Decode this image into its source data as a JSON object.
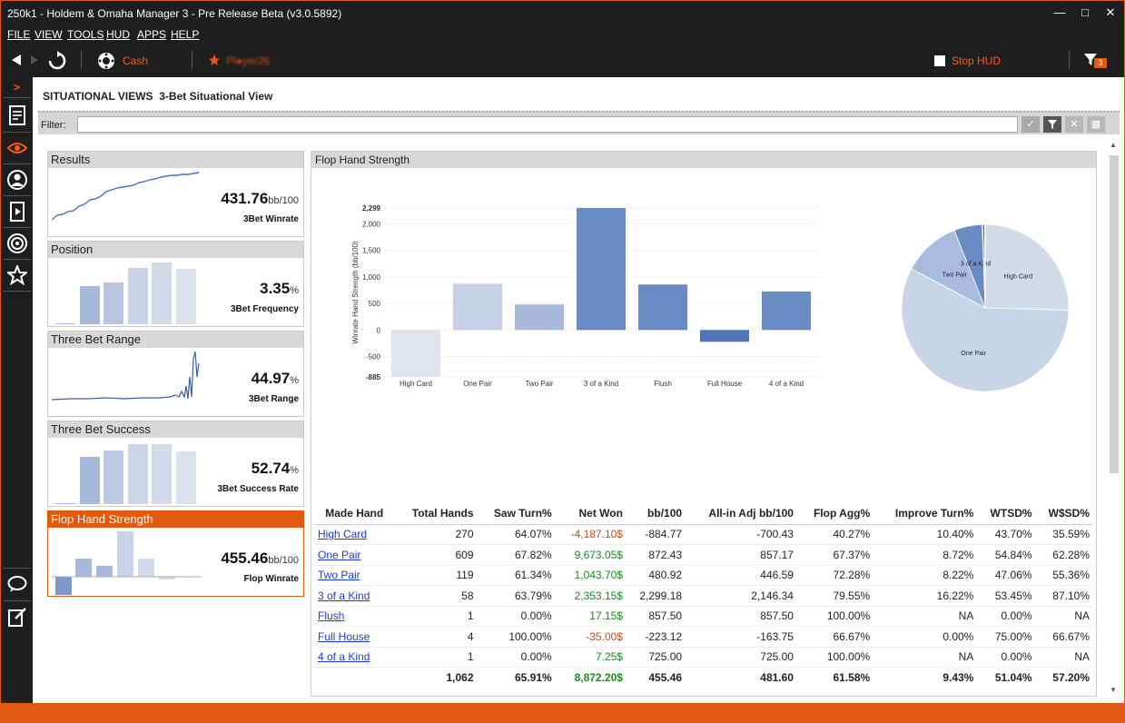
{
  "window": {
    "title": "250k1 - Holdem & Omaha Manager 3 - Pre Release Beta (v3.0.5892)"
  },
  "menu": [
    "FILE",
    "VIEW",
    "TOOLS",
    "HUD",
    "APPS",
    "HELP"
  ],
  "toolbar": {
    "game_label": "Cash",
    "player_label": "Pl●yer26",
    "stop_hud_label": "Stop HUD",
    "filter_badge": "3"
  },
  "page": {
    "section": "SITUATIONAL VIEWS",
    "title": "3-Bet Situational View",
    "filter_label": "Filter:",
    "filter_value": ""
  },
  "cards": [
    {
      "title": "Results",
      "value": "431.76",
      "unit": "bb/100",
      "subtitle": "3Bet Winrate",
      "active": false
    },
    {
      "title": "Position",
      "value": "3.35",
      "unit": "%",
      "subtitle": "3Bet Frequency",
      "active": false
    },
    {
      "title": "Three Bet Range",
      "value": "44.97",
      "unit": "%",
      "subtitle": "3Bet Range",
      "active": false
    },
    {
      "title": "Three Bet Success",
      "value": "52.74",
      "unit": "%",
      "subtitle": "3Bet Success Rate",
      "active": false
    },
    {
      "title": "Flop Hand Strength",
      "value": "455.46",
      "unit": "bb/100",
      "subtitle": "Flop Winrate",
      "active": true
    }
  ],
  "panel": {
    "title": "Flop Hand Strength"
  },
  "chart_data": [
    {
      "type": "bar",
      "ylabel": "Winrate Hand Strength (bb/100)",
      "ylim": [
        -885,
        2299
      ],
      "yticks": [
        "2,299",
        "2,000",
        "1,500",
        "1,000",
        "500",
        "0",
        "-500",
        "-885"
      ],
      "categories": [
        "High Card",
        "One Pair",
        "Two Pair",
        "3 of a Kind",
        "Flush",
        "Full House",
        "4 of a Kind"
      ],
      "values": [
        -884.77,
        872.43,
        480.92,
        2299.18,
        857.5,
        -223.12,
        725.0
      ],
      "colors": [
        "#dfe3ec",
        "#c5d0e6",
        "#a8b9dc",
        "#6a8cc4",
        "#6a8cc4",
        "#4f73b5",
        "#6a8cc4"
      ]
    },
    {
      "type": "pie",
      "labels": [
        "High Card",
        "One Pair",
        "Two Pair",
        "3 of a Kind",
        "Flush",
        "Full House",
        "4 of a Kind"
      ],
      "values": [
        270,
        609,
        119,
        58,
        1,
        4,
        1
      ],
      "colors": [
        "#d3dbe9",
        "#c8d5e7",
        "#a9bbde",
        "#6a8cc4",
        "#4f73b5",
        "#3f62a8",
        "#5d7fbf"
      ]
    }
  ],
  "table": {
    "headers": [
      "Made Hand",
      "Total Hands",
      "Saw Turn%",
      "Net Won",
      "bb/100",
      "All-in Adj bb/100",
      "Flop Agg%",
      "Improve Turn%",
      "WTSD%",
      "W$SD%"
    ],
    "rows": [
      [
        "High Card",
        "270",
        "64.07%",
        "-4,187.10$",
        "-884.77",
        "-700.43",
        "40.27%",
        "10.40%",
        "43.70%",
        "35.59%"
      ],
      [
        "One Pair",
        "609",
        "67.82%",
        "9,673.05$",
        "872.43",
        "857.17",
        "67.37%",
        "8.72%",
        "54.84%",
        "62.28%"
      ],
      [
        "Two Pair",
        "119",
        "61.34%",
        "1,043.70$",
        "480.92",
        "446.59",
        "72.28%",
        "8.22%",
        "47.06%",
        "55.36%"
      ],
      [
        "3 of a Kind",
        "58",
        "63.79%",
        "2,353.15$",
        "2,299.18",
        "2,146.34",
        "79.55%",
        "16.22%",
        "53.45%",
        "87.10%"
      ],
      [
        "Flush",
        "1",
        "0.00%",
        "17.15$",
        "857.50",
        "857.50",
        "100.00%",
        "NA",
        "0.00%",
        "NA"
      ],
      [
        "Full House",
        "4",
        "100.00%",
        "-35.00$",
        "-223.12",
        "-163.75",
        "66.67%",
        "0.00%",
        "75.00%",
        "66.67%"
      ],
      [
        "4 of a Kind",
        "1",
        "0.00%",
        "7.25$",
        "725.00",
        "725.00",
        "100.00%",
        "NA",
        "0.00%",
        "NA"
      ]
    ],
    "totals": [
      "",
      "1,062",
      "65.91%",
      "8,872.20$",
      "455.46",
      "481.60",
      "61.58%",
      "9.43%",
      "51.04%",
      "57.20%"
    ]
  }
}
